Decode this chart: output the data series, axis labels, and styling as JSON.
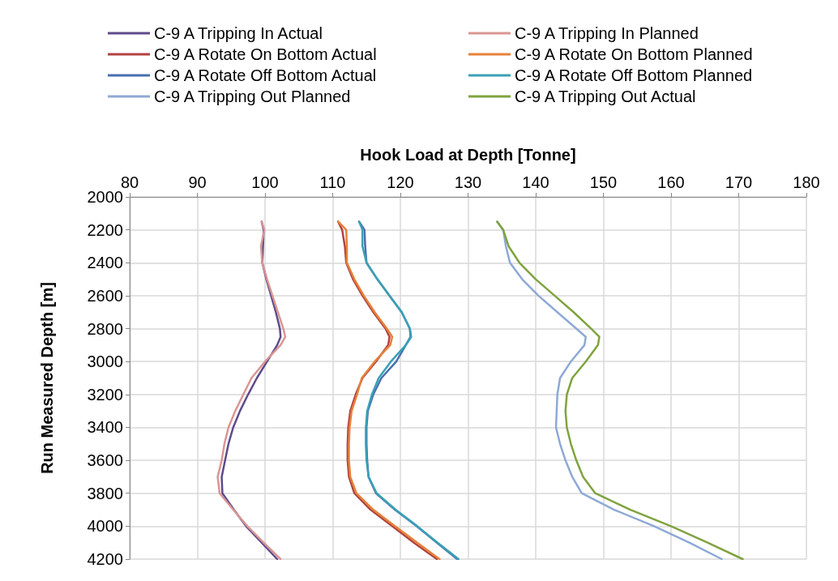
{
  "chart_data": {
    "type": "line",
    "xlabel": "Hook Load at Depth [Tonne]",
    "ylabel": "Run Measured Depth [m]",
    "xlim": [
      80,
      180
    ],
    "xticks": [
      80,
      90,
      100,
      110,
      120,
      130,
      140,
      150,
      160,
      170,
      180
    ],
    "ylim": [
      4200,
      2000
    ],
    "yticks": [
      2000,
      2200,
      2400,
      2600,
      2800,
      3000,
      3200,
      3400,
      3600,
      3800,
      4000,
      4200
    ],
    "grid": true,
    "legend": "top",
    "series": [
      {
        "name": "C-9 A Tripping In Actual",
        "color": "#5f4b8b",
        "x": [
          99.5,
          99.8,
          99.7,
          99.6,
          100.2,
          100.9,
          101.6,
          102.2,
          102.3,
          101.8,
          100.3,
          98.8,
          97.5,
          96.3,
          95.3,
          94.6,
          94.1,
          93.6,
          93.7,
          95.4,
          97.2,
          99.5,
          101.8
        ],
        "values": [
          2150,
          2200,
          2300,
          2400,
          2500,
          2600,
          2700,
          2800,
          2850,
          2900,
          3000,
          3100,
          3200,
          3300,
          3400,
          3500,
          3600,
          3700,
          3800,
          3900,
          4000,
          4100,
          4200
        ]
      },
      {
        "name": "C-9 A Tripping In Planned",
        "color": "#d99694",
        "x": [
          99.5,
          99.9,
          99.4,
          99.6,
          100.3,
          101.1,
          101.9,
          102.7,
          103,
          102.3,
          100,
          98,
          96.8,
          95.6,
          94.6,
          94,
          93.6,
          93,
          93.3,
          95.3,
          97.4,
          99.8,
          102.3
        ],
        "values": [
          2150,
          2200,
          2300,
          2400,
          2500,
          2600,
          2700,
          2800,
          2850,
          2900,
          3000,
          3100,
          3200,
          3300,
          3400,
          3500,
          3600,
          3700,
          3800,
          3900,
          4000,
          4100,
          4200
        ]
      },
      {
        "name": "C-9 A Rotate On Bottom Actual",
        "color": "#b14340",
        "x": [
          110.8,
          111.4,
          111.8,
          112,
          113,
          114.4,
          116,
          117.8,
          118.4,
          118.2,
          116.4,
          114.4,
          113.4,
          112.6,
          112.3,
          112.2,
          112.2,
          112.4,
          113.2,
          115.6,
          118.8,
          122,
          125.4
        ],
        "values": [
          2150,
          2200,
          2300,
          2400,
          2500,
          2600,
          2700,
          2800,
          2850,
          2900,
          3000,
          3100,
          3200,
          3300,
          3400,
          3500,
          3600,
          3700,
          3800,
          3900,
          4000,
          4100,
          4200
        ]
      },
      {
        "name": "C-9 A Rotate On Bottom Planned",
        "color": "#e6823a",
        "x": [
          110.8,
          112,
          112.1,
          112.1,
          113.2,
          114.6,
          116.2,
          118,
          118.8,
          118.5,
          116.2,
          114.3,
          113.6,
          112.8,
          112.5,
          112.4,
          112.4,
          112.6,
          113.5,
          116,
          119.2,
          122.5,
          125.8
        ],
        "values": [
          2150,
          2200,
          2300,
          2400,
          2500,
          2600,
          2700,
          2800,
          2850,
          2900,
          3000,
          3100,
          3200,
          3300,
          3400,
          3500,
          3600,
          3700,
          3800,
          3900,
          4000,
          4100,
          4200
        ]
      },
      {
        "name": "C-9 A Rotate Off Bottom Actual",
        "color": "#4a6fae",
        "x": [
          113.9,
          114.7,
          114.8,
          115,
          116.6,
          118.4,
          120.2,
          121.4,
          121.5,
          120.8,
          119.4,
          117.2,
          116,
          115.2,
          115,
          115,
          115.1,
          115.3,
          116.4,
          119.2,
          122.4,
          125.4,
          128.4
        ],
        "values": [
          2150,
          2200,
          2300,
          2400,
          2500,
          2600,
          2700,
          2800,
          2850,
          2900,
          3000,
          3100,
          3200,
          3300,
          3400,
          3500,
          3600,
          3700,
          3800,
          3900,
          4000,
          4100,
          4200
        ]
      },
      {
        "name": "C-9 A Rotate Off Bottom Planned",
        "color": "#3aa0b5",
        "x": [
          113.9,
          114.4,
          114.4,
          115,
          116.6,
          118.4,
          120.2,
          121.4,
          121.6,
          120.8,
          118.6,
          116.8,
          115.8,
          115.1,
          114.9,
          114.9,
          115,
          115.3,
          116.5,
          119.3,
          122.5,
          125.5,
          128.6
        ],
        "values": [
          2150,
          2200,
          2300,
          2400,
          2500,
          2600,
          2700,
          2800,
          2850,
          2900,
          3000,
          3100,
          3200,
          3300,
          3400,
          3500,
          3600,
          3700,
          3800,
          3900,
          4000,
          4100,
          4200
        ]
      },
      {
        "name": "C-9 A Tripping Out Planned",
        "color": "#8ea9d6",
        "x": [
          134.3,
          135.2,
          135.6,
          136.2,
          138,
          140.4,
          143.2,
          146,
          147.4,
          147.2,
          145.2,
          143.6,
          143.2,
          143.1,
          143,
          143.6,
          144.4,
          145.4,
          146.8,
          151.6,
          157.5,
          162.7,
          167.5
        ],
        "values": [
          2150,
          2200,
          2300,
          2400,
          2500,
          2600,
          2700,
          2800,
          2850,
          2900,
          3000,
          3100,
          3200,
          3300,
          3400,
          3500,
          3600,
          3700,
          3800,
          3900,
          4000,
          4100,
          4200
        ]
      },
      {
        "name": "C-9 A Tripping Out Actual",
        "color": "#7fa33f",
        "x": [
          134.3,
          135.2,
          136,
          137.6,
          140,
          142.8,
          145.6,
          148.2,
          149.4,
          149.2,
          147.4,
          145.4,
          144.6,
          144.4,
          144.6,
          145.2,
          146,
          147,
          148.8,
          154,
          160,
          165.4,
          170.6
        ],
        "values": [
          2150,
          2200,
          2300,
          2400,
          2500,
          2600,
          2700,
          2800,
          2850,
          2900,
          3000,
          3100,
          3200,
          3300,
          3400,
          3500,
          3600,
          3700,
          3800,
          3900,
          4000,
          4100,
          4200
        ]
      }
    ]
  }
}
